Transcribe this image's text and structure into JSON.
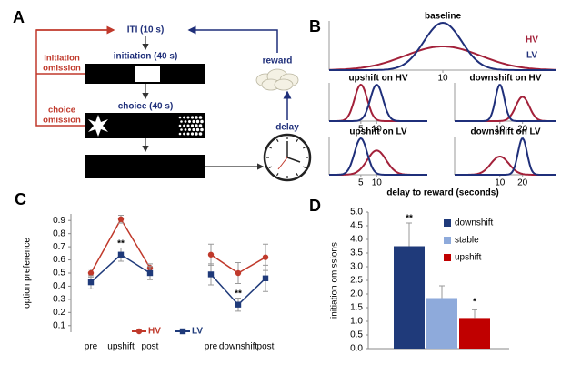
{
  "diagram": {
    "label": "A",
    "iti": "ITI (10 s)",
    "initiation": "initiation (40 s)",
    "choice": "choice (40 s)",
    "initiation_omission": [
      "initiation",
      "omission"
    ],
    "choice_omission": [
      "choice",
      "omission"
    ],
    "reward": "reward",
    "delay": "delay"
  },
  "chart_data": [
    {
      "type": "density",
      "panel_label": "B",
      "xlabel": "delay to reward (seconds)",
      "series": [
        {
          "name": "HV",
          "color": "#a3213a"
        },
        {
          "name": "LV",
          "color": "#1f2f7a"
        }
      ],
      "plots": [
        {
          "title": "baseline",
          "xlim": [
            -5,
            25
          ],
          "xticks": [
            10
          ],
          "curves": [
            {
              "mean": 10,
              "sd": 5
            },
            {
              "mean": 10,
              "sd": 2.5
            }
          ]
        },
        {
          "title": "upshift on HV",
          "xlim": [
            -5,
            26
          ],
          "xticks": [
            5,
            10
          ],
          "curves": [
            {
              "mean": 5,
              "sd": 2
            },
            {
              "mean": 10,
              "sd": 2
            }
          ]
        },
        {
          "title": "downshift on HV",
          "xlim": [
            -10,
            35
          ],
          "xticks": [
            10,
            20
          ],
          "curves": [
            {
              "mean": 20,
              "sd": 3
            },
            {
              "mean": 10,
              "sd": 2
            }
          ]
        },
        {
          "title": "upshift on LV",
          "xlim": [
            -5,
            26
          ],
          "xticks": [
            5,
            10
          ],
          "curves": [
            {
              "mean": 10,
              "sd": 3
            },
            {
              "mean": 5,
              "sd": 2
            }
          ]
        },
        {
          "title": "downshift on LV",
          "xlim": [
            -10,
            35
          ],
          "xticks": [
            10,
            20
          ],
          "curves": [
            {
              "mean": 10,
              "sd": 4
            },
            {
              "mean": 20,
              "sd": 2
            }
          ]
        }
      ]
    },
    {
      "type": "line",
      "panel_label": "C",
      "ylabel": "option preference",
      "categories": [
        "pre",
        "upshift",
        "post",
        null,
        "pre",
        "downshift",
        "post"
      ],
      "series": [
        {
          "name": "HV",
          "color": "#c0392b",
          "values": [
            0.5,
            0.91,
            0.54,
            null,
            0.64,
            0.5,
            0.62
          ],
          "errors": [
            0.03,
            0.03,
            0.03,
            null,
            0.08,
            0.08,
            0.1
          ]
        },
        {
          "name": "LV",
          "color": "#1f3a7a",
          "values": [
            0.43,
            0.64,
            0.5,
            null,
            0.49,
            0.26,
            0.46
          ],
          "errors": [
            0.05,
            0.05,
            0.05,
            null,
            0.08,
            0.05,
            0.1
          ]
        }
      ],
      "annotations": [
        "**",
        "**"
      ],
      "ylim": [
        0.05,
        0.95
      ],
      "yticks": [
        0.1,
        0.2,
        0.3,
        0.4,
        0.5,
        0.6,
        0.7,
        0.8,
        0.9
      ]
    },
    {
      "type": "bar",
      "panel_label": "D",
      "ylabel": "initiation omissions",
      "categories": [
        "downshift",
        "stable",
        "upshift"
      ],
      "values": [
        3.75,
        1.85,
        1.12
      ],
      "errors": [
        0.85,
        0.45,
        0.3
      ],
      "colors": [
        "#1f3a7a",
        "#8eaadb",
        "#c00000"
      ],
      "annotations": [
        "**",
        "*"
      ],
      "ylim": [
        0,
        5
      ],
      "yticks": [
        {
          "value": 0,
          "label": "0.0"
        },
        0.5,
        {
          "value": 1,
          "label": "1.0"
        },
        1.5,
        {
          "value": 2,
          "label": "2.0"
        },
        2.5,
        {
          "value": 3,
          "label": "3.0"
        },
        3.5,
        {
          "value": 4,
          "label": "4.0"
        },
        4.5,
        {
          "value": 5,
          "label": "5.0"
        }
      ]
    }
  ]
}
